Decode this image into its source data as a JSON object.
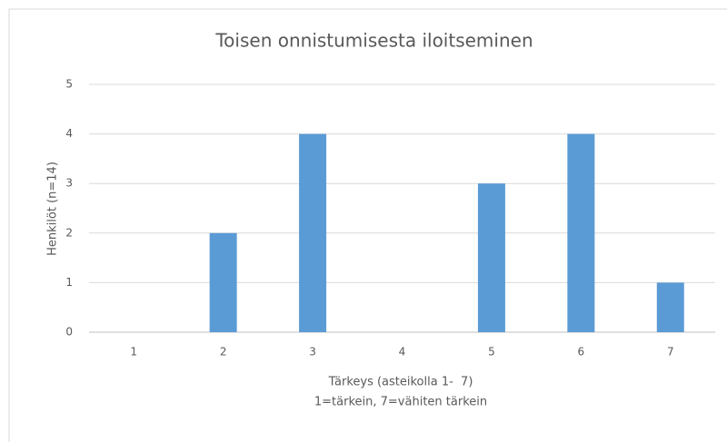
{
  "chart_data": {
    "type": "bar",
    "title": "Toisen onnistumisesta iloitseminen",
    "ylabel": "Henkilöt (n=14)",
    "xlabel": [
      "Tärkeys (asteikolla 1-  7)",
      "1=tärkein, 7=vähiten tärkein"
    ],
    "categories": [
      "1",
      "2",
      "3",
      "4",
      "5",
      "6",
      "7"
    ],
    "values": [
      0,
      2,
      4,
      0,
      3,
      4,
      1
    ],
    "color": "#5b9bd5",
    "ylim": [
      0,
      5
    ],
    "yticks": [
      0,
      1,
      2,
      3,
      4,
      5
    ],
    "grid": true
  }
}
